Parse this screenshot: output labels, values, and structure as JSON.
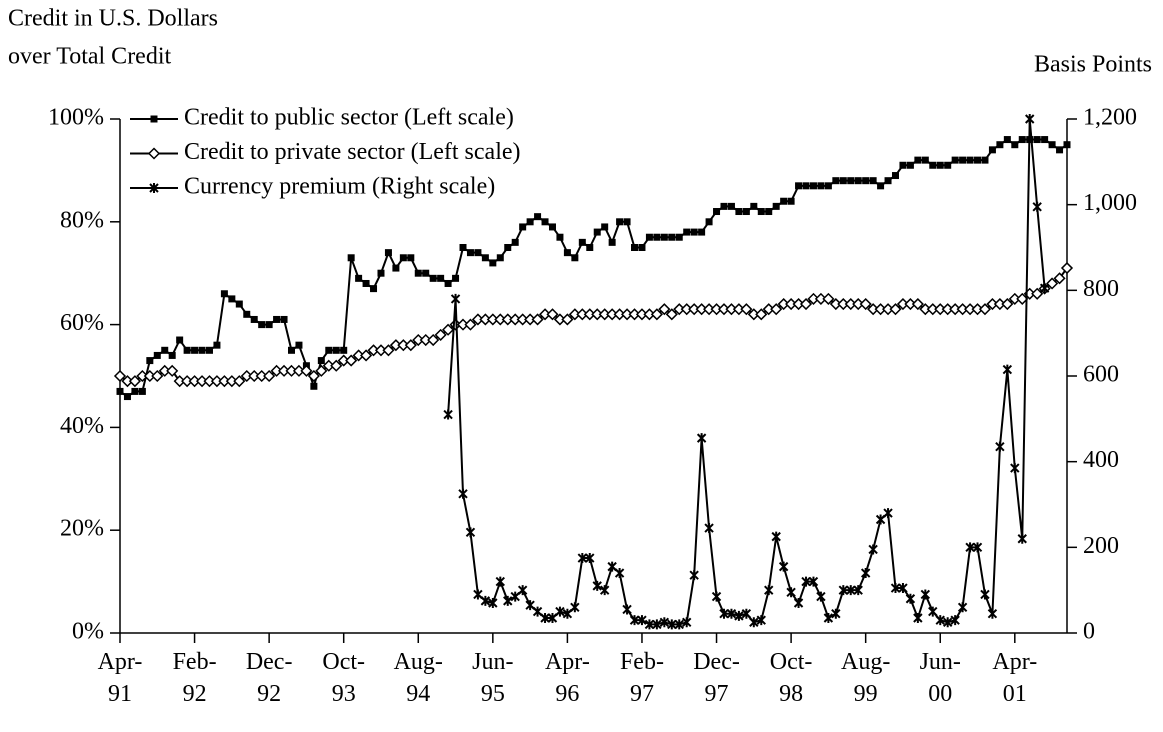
{
  "chart_data": {
    "type": "line",
    "y_label": [
      "Credit in U.S. Dollars",
      "over Total Credit"
    ],
    "y2_label": "Basis Points",
    "legend": "upper left",
    "categories": [
      "Apr-91",
      null,
      null,
      null,
      null,
      null,
      null,
      null,
      null,
      null,
      "Feb-92",
      null,
      null,
      null,
      null,
      null,
      null,
      null,
      null,
      null,
      "Dec-92",
      null,
      null,
      null,
      null,
      null,
      null,
      null,
      null,
      null,
      "Oct-93",
      null,
      null,
      null,
      null,
      null,
      null,
      null,
      null,
      null,
      "Aug-94",
      null,
      null,
      null,
      null,
      null,
      null,
      null,
      null,
      null,
      "Jun-95",
      null,
      null,
      null,
      null,
      null,
      null,
      null,
      null,
      null,
      "Apr-96",
      null,
      null,
      null,
      null,
      null,
      null,
      null,
      null,
      null,
      "Feb-97",
      null,
      null,
      null,
      null,
      null,
      null,
      null,
      null,
      null,
      "Dec-97",
      null,
      null,
      null,
      null,
      null,
      null,
      null,
      null,
      null,
      "Oct-98",
      null,
      null,
      null,
      null,
      null,
      null,
      null,
      null,
      null,
      "Aug-99",
      null,
      null,
      null,
      null,
      null,
      null,
      null,
      null,
      null,
      "Jun-00",
      null,
      null,
      null,
      null,
      null,
      null,
      null,
      null,
      null,
      "Apr-01",
      null,
      null,
      null,
      null,
      null,
      null,
      null
    ],
    "ylim": [
      0,
      100
    ],
    "yticks": [
      {
        "value": 0,
        "label": "0%"
      },
      {
        "value": 20,
        "label": "20%"
      },
      {
        "value": 40,
        "label": "40%"
      },
      {
        "value": 60,
        "label": "60%"
      },
      {
        "value": 80,
        "label": "80%"
      },
      {
        "value": 100,
        "label": "100%"
      }
    ],
    "y2lim": [
      0,
      1200
    ],
    "y2ticks": [
      0,
      200,
      400,
      600,
      800,
      {
        "value": 1000,
        "label": "1,000"
      },
      {
        "value": 1200,
        "label": "1,200"
      }
    ],
    "series": [
      {
        "name": "Credit to public sector (Left scale)",
        "color": "#000000",
        "marker": "square",
        "values": [
          47,
          46,
          47,
          47,
          53,
          54,
          55,
          54,
          57,
          55,
          55,
          55,
          55,
          56,
          66,
          65,
          64,
          62,
          61,
          60,
          60,
          61,
          61,
          55,
          56,
          52,
          48,
          53,
          55,
          55,
          55,
          73,
          69,
          68,
          67,
          70,
          74,
          71,
          73,
          73,
          70,
          70,
          69,
          69,
          68,
          69,
          75,
          74,
          74,
          73,
          72,
          73,
          75,
          76,
          79,
          80,
          81,
          80,
          79,
          77,
          74,
          73,
          76,
          75,
          78,
          79,
          76,
          80,
          80,
          75,
          75,
          77,
          77,
          77,
          77,
          77,
          78,
          78,
          78,
          80,
          82,
          83,
          83,
          82,
          82,
          83,
          82,
          82,
          83,
          84,
          84,
          87,
          87,
          87,
          87,
          87,
          88,
          88,
          88,
          88,
          88,
          88,
          87,
          88,
          89,
          91,
          91,
          92,
          92,
          91,
          91,
          91,
          92,
          92,
          92,
          92,
          92,
          94,
          95,
          96,
          95,
          96,
          96,
          96,
          96,
          95,
          94,
          95
        ]
      },
      {
        "name": "Credit to private sector (Left scale)",
        "color": "#000000",
        "marker": "diamond",
        "values": [
          50,
          49,
          49,
          50,
          50,
          50,
          51,
          51,
          49,
          49,
          49,
          49,
          49,
          49,
          49,
          49,
          49,
          50,
          50,
          50,
          50,
          51,
          51,
          51,
          51,
          51,
          50,
          51,
          52,
          52,
          53,
          53,
          54,
          54,
          55,
          55,
          55,
          56,
          56,
          56,
          57,
          57,
          57,
          58,
          59,
          60,
          60,
          60,
          61,
          61,
          61,
          61,
          61,
          61,
          61,
          61,
          61,
          62,
          62,
          61,
          61,
          62,
          62,
          62,
          62,
          62,
          62,
          62,
          62,
          62,
          62,
          62,
          62,
          63,
          62,
          63,
          63,
          63,
          63,
          63,
          63,
          63,
          63,
          63,
          63,
          62,
          62,
          63,
          63,
          64,
          64,
          64,
          64,
          65,
          65,
          65,
          64,
          64,
          64,
          64,
          64,
          63,
          63,
          63,
          63,
          64,
          64,
          64,
          63,
          63,
          63,
          63,
          63,
          63,
          63,
          63,
          63,
          64,
          64,
          64,
          65,
          65,
          66,
          66,
          67,
          68,
          69,
          71
        ]
      },
      {
        "name": "Currency premium (Right scale)",
        "color": "#000000",
        "marker": "asterisk",
        "axis": "y2",
        "values": [
          null,
          null,
          null,
          null,
          null,
          null,
          null,
          null,
          null,
          null,
          null,
          null,
          null,
          null,
          null,
          null,
          null,
          null,
          null,
          null,
          null,
          null,
          null,
          null,
          null,
          null,
          null,
          null,
          null,
          null,
          null,
          null,
          null,
          null,
          null,
          null,
          null,
          null,
          null,
          null,
          null,
          null,
          null,
          null,
          510,
          780,
          325,
          235,
          90,
          75,
          70,
          120,
          75,
          85,
          100,
          65,
          50,
          35,
          35,
          50,
          45,
          60,
          175,
          175,
          110,
          100,
          155,
          140,
          55,
          30,
          30,
          20,
          20,
          25,
          20,
          20,
          25,
          135,
          455,
          245,
          85,
          45,
          45,
          40,
          45,
          25,
          30,
          100,
          225,
          155,
          95,
          70,
          120,
          120,
          85,
          35,
          45,
          100,
          100,
          100,
          140,
          195,
          265,
          280,
          105,
          105,
          80,
          35,
          90,
          50,
          30,
          25,
          30,
          60,
          200,
          200,
          90,
          45,
          435,
          615,
          385,
          220,
          1200,
          995,
          805,
          null,
          null,
          null
        ]
      }
    ]
  }
}
